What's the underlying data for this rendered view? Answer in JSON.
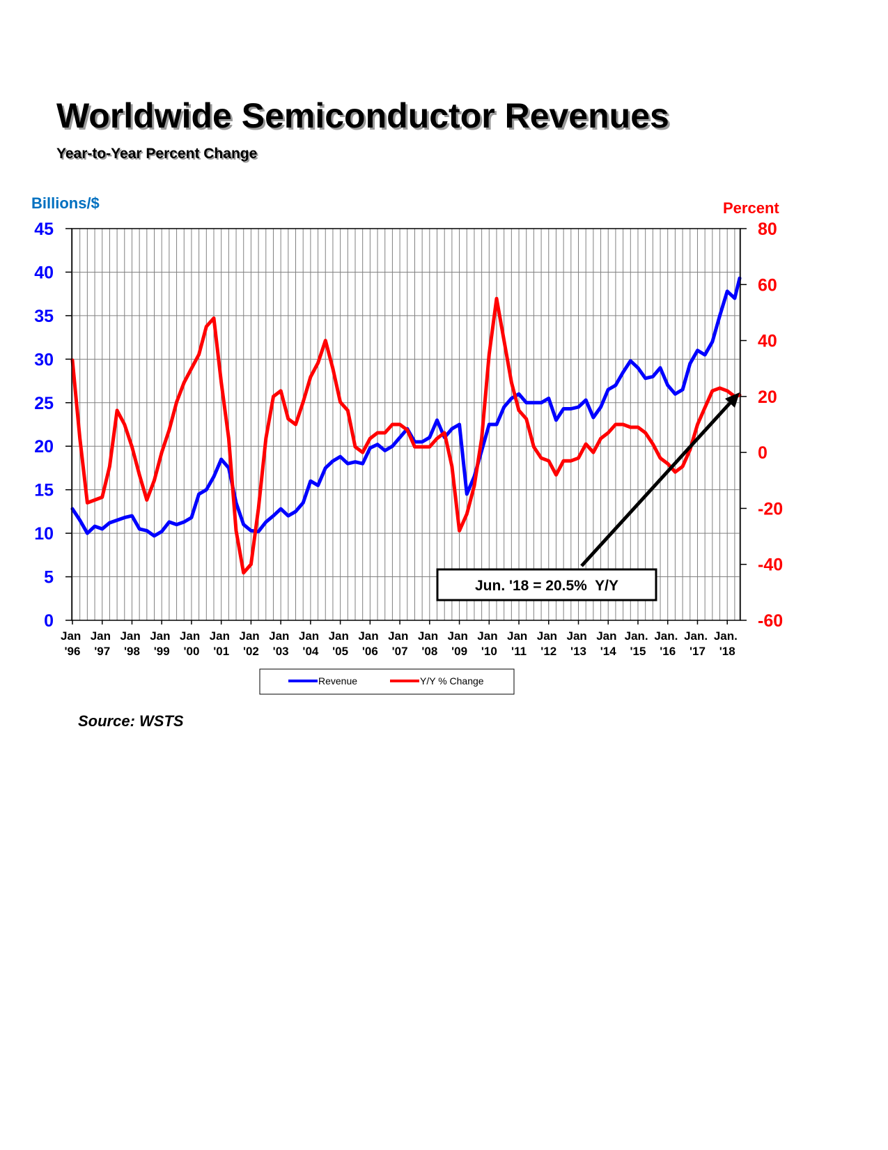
{
  "chart_data": {
    "type": "line",
    "title": "Worldwide Semiconductor Revenues",
    "subtitle": "Year-to-Year Percent Change",
    "y_label": "Billions/$",
    "y2_label": "Percent",
    "source": "Source: WSTS",
    "annotation": "Jun. '18 = 20.5%  Y/Y",
    "x": [
      "1996-01",
      "1996-04",
      "1996-07",
      "1996-10",
      "1997-01",
      "1997-04",
      "1997-07",
      "1997-10",
      "1998-01",
      "1998-04",
      "1998-07",
      "1998-10",
      "1999-01",
      "1999-04",
      "1999-07",
      "1999-10",
      "2000-01",
      "2000-04",
      "2000-07",
      "2000-10",
      "2001-01",
      "2001-04",
      "2001-07",
      "2001-10",
      "2002-01",
      "2002-04",
      "2002-07",
      "2002-10",
      "2003-01",
      "2003-04",
      "2003-07",
      "2003-10",
      "2004-01",
      "2004-04",
      "2004-07",
      "2004-10",
      "2005-01",
      "2005-04",
      "2005-07",
      "2005-10",
      "2006-01",
      "2006-04",
      "2006-07",
      "2006-10",
      "2007-01",
      "2007-04",
      "2007-07",
      "2007-10",
      "2008-01",
      "2008-04",
      "2008-07",
      "2008-10",
      "2009-01",
      "2009-04",
      "2009-07",
      "2009-10",
      "2010-01",
      "2010-04",
      "2010-07",
      "2010-10",
      "2011-01",
      "2011-04",
      "2011-07",
      "2011-10",
      "2012-01",
      "2012-04",
      "2012-07",
      "2012-10",
      "2013-01",
      "2013-04",
      "2013-07",
      "2013-10",
      "2014-01",
      "2014-04",
      "2014-07",
      "2014-10",
      "2015-01",
      "2015-04",
      "2015-07",
      "2015-10",
      "2016-01",
      "2016-04",
      "2016-07",
      "2016-10",
      "2017-01",
      "2017-04",
      "2017-07",
      "2017-10",
      "2018-01",
      "2018-04",
      "2018-06"
    ],
    "series": [
      {
        "name": "Revenue",
        "color": "#0000ff",
        "values": [
          12.8,
          11.5,
          10.0,
          10.8,
          10.5,
          11.2,
          11.5,
          11.8,
          12.0,
          10.5,
          10.3,
          9.7,
          10.2,
          11.3,
          11.0,
          11.3,
          11.8,
          14.5,
          15.0,
          16.5,
          18.5,
          17.5,
          13.5,
          11.0,
          10.3,
          10.2,
          11.3,
          12.0,
          12.8,
          12.0,
          12.5,
          13.5,
          16.0,
          15.5,
          17.5,
          18.3,
          18.8,
          18.0,
          18.2,
          18.0,
          19.8,
          20.2,
          19.5,
          20.0,
          21.0,
          22.0,
          20.5,
          20.5,
          21.0,
          23.0,
          21.0,
          22.0,
          22.5,
          14.5,
          16.5,
          19.5,
          22.5,
          22.5,
          24.5,
          25.5,
          26.0,
          25.0,
          25.0,
          25.0,
          25.5,
          23.0,
          24.3,
          24.3,
          24.5,
          25.3,
          23.3,
          24.5,
          26.5,
          27.0,
          28.5,
          29.8,
          29.0,
          27.8,
          28.0,
          29.0,
          27.0,
          26.0,
          26.5,
          29.5,
          31.0,
          30.5,
          32.0,
          35.0,
          37.8,
          37.0,
          39.3
        ]
      },
      {
        "name": "Y/Y % Change",
        "color": "#ff0000",
        "axis": "y2",
        "values": [
          33,
          5,
          -18,
          -17,
          -16,
          -5,
          15,
          10,
          2,
          -8,
          -17,
          -10,
          0,
          8,
          18,
          25,
          30,
          35,
          45,
          48,
          25,
          5,
          -28,
          -43,
          -40,
          -20,
          5,
          20,
          22,
          12,
          10,
          18,
          27,
          32,
          40,
          30,
          18,
          15,
          2,
          0,
          5,
          7,
          7,
          10,
          10,
          8,
          2,
          2,
          2,
          5,
          7,
          -5,
          -28,
          -22,
          -12,
          5,
          35,
          55,
          40,
          25,
          15,
          12,
          2,
          -2,
          -3,
          -8,
          -3,
          -3,
          -2,
          3,
          0,
          5,
          7,
          10,
          10,
          9,
          9,
          7,
          3,
          -2,
          -4,
          -7,
          -5,
          1,
          10,
          16,
          22,
          23,
          22,
          20,
          20.5
        ]
      }
    ],
    "xlim": [
      "1996-01",
      "2018-06"
    ],
    "xticks": [
      {
        "value": "1996-01",
        "label": "Jan '96"
      },
      {
        "value": "1997-01",
        "label": "Jan '97"
      },
      {
        "value": "1998-01",
        "label": "Jan '98"
      },
      {
        "value": "1999-01",
        "label": "Jan '99"
      },
      {
        "value": "2000-01",
        "label": "Jan '00"
      },
      {
        "value": "2001-01",
        "label": "Jan '01"
      },
      {
        "value": "2002-01",
        "label": "Jan '02"
      },
      {
        "value": "2003-01",
        "label": "Jan '03"
      },
      {
        "value": "2004-01",
        "label": "Jan '04"
      },
      {
        "value": "2005-01",
        "label": "Jan '05"
      },
      {
        "value": "2006-01",
        "label": "Jan '06"
      },
      {
        "value": "2007-01",
        "label": "Jan '07"
      },
      {
        "value": "2008-01",
        "label": "Jan '08"
      },
      {
        "value": "2009-01",
        "label": "Jan '09"
      },
      {
        "value": "2010-01",
        "label": "Jan '10"
      },
      {
        "value": "2011-01",
        "label": "Jan '11"
      },
      {
        "value": "2012-01",
        "label": "Jan '12"
      },
      {
        "value": "2013-01",
        "label": "Jan '13"
      },
      {
        "value": "2014-01",
        "label": "Jan '14"
      },
      {
        "value": "2015-01",
        "label": "Jan. '15"
      },
      {
        "value": "2016-01",
        "label": "Jan. '16"
      },
      {
        "value": "2017-01",
        "label": "Jan. '17"
      },
      {
        "value": "2018-01",
        "label": "Jan. '18"
      }
    ],
    "ylim": [
      0,
      45
    ],
    "yticks": [
      0,
      5,
      10,
      15,
      20,
      25,
      30,
      35,
      40,
      45
    ],
    "y2lim": [
      -60,
      80
    ],
    "y2ticks": [
      -60,
      -40,
      -20,
      0,
      20,
      40,
      60,
      80
    ],
    "grid": true
  }
}
